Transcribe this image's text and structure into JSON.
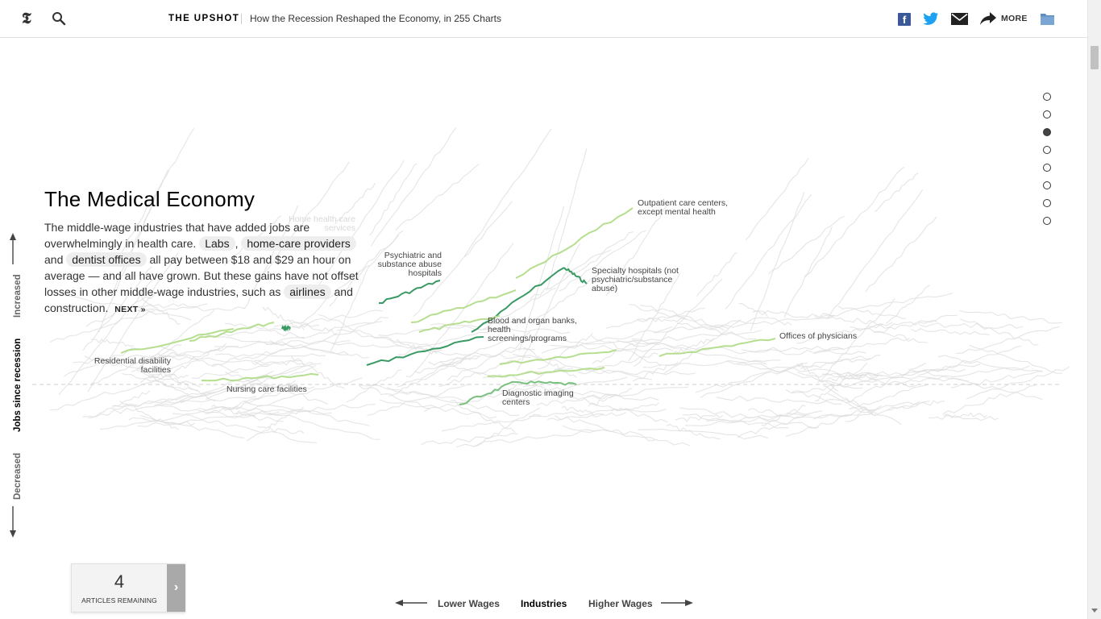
{
  "header": {
    "section": "THE UPSHOT",
    "headline": "How the Recession Reshaped the Economy, in 255 Charts",
    "more_label": "MORE",
    "icons": [
      "nyt-logo-icon",
      "search-icon",
      "facebook-icon",
      "twitter-icon",
      "email-icon",
      "share-arrow-icon",
      "save-folder-icon"
    ]
  },
  "story": {
    "title": "The Medical Economy",
    "text_1": "The middle-wage industries that have added jobs are overwhelmingly in health care.",
    "pill_labs": "Labs",
    "text_comma": ",",
    "pill_homecare": "home-care providers",
    "text_and": "and",
    "pill_dentist": "dentist offices",
    "text_2": "all pay between $18 and $29 an hour on average — and all have grown. But these gains have not offset losses in other middle-wage industries, such as",
    "pill_airlines": "airlines",
    "text_3": "and construction.",
    "next_label": "NEXT »"
  },
  "axes": {
    "vertical_up": "Increased",
    "vertical_title": "Jobs since recession",
    "vertical_down": "Decreased",
    "horizontal_left": "Lower Wages",
    "horizontal_title": "Industries",
    "horizontal_right": "Higher Wages"
  },
  "steps": {
    "count": 8,
    "active_index": 2
  },
  "meter": {
    "count": "4",
    "label": "ARTICLES REMAINING",
    "button": "›"
  },
  "chart_labels": {
    "outpatient": "Outpatient care centers,\nexcept mental health",
    "specialty": "Specialty hospitals (not\npsychiatric/substance\nabuse)",
    "psychiatric": "Psychiatric and\nsubstance abuse\nhospitals",
    "blood": "Blood and organ banks,\nhealth\nscreenings/programs",
    "physicians": "Offices of physicians",
    "residential": "Residential disability\nfacilities",
    "nursing": "Nursing care facilities",
    "diagnostic": "Diagnostic imaging\ncenters",
    "homehealth": "Home health care\nservices"
  },
  "colors": {
    "highlight_dark": "#3a9a63",
    "highlight_mid": "#79c07e",
    "highlight_light": "#b5de8f",
    "background_line": "#dcdcdc"
  }
}
